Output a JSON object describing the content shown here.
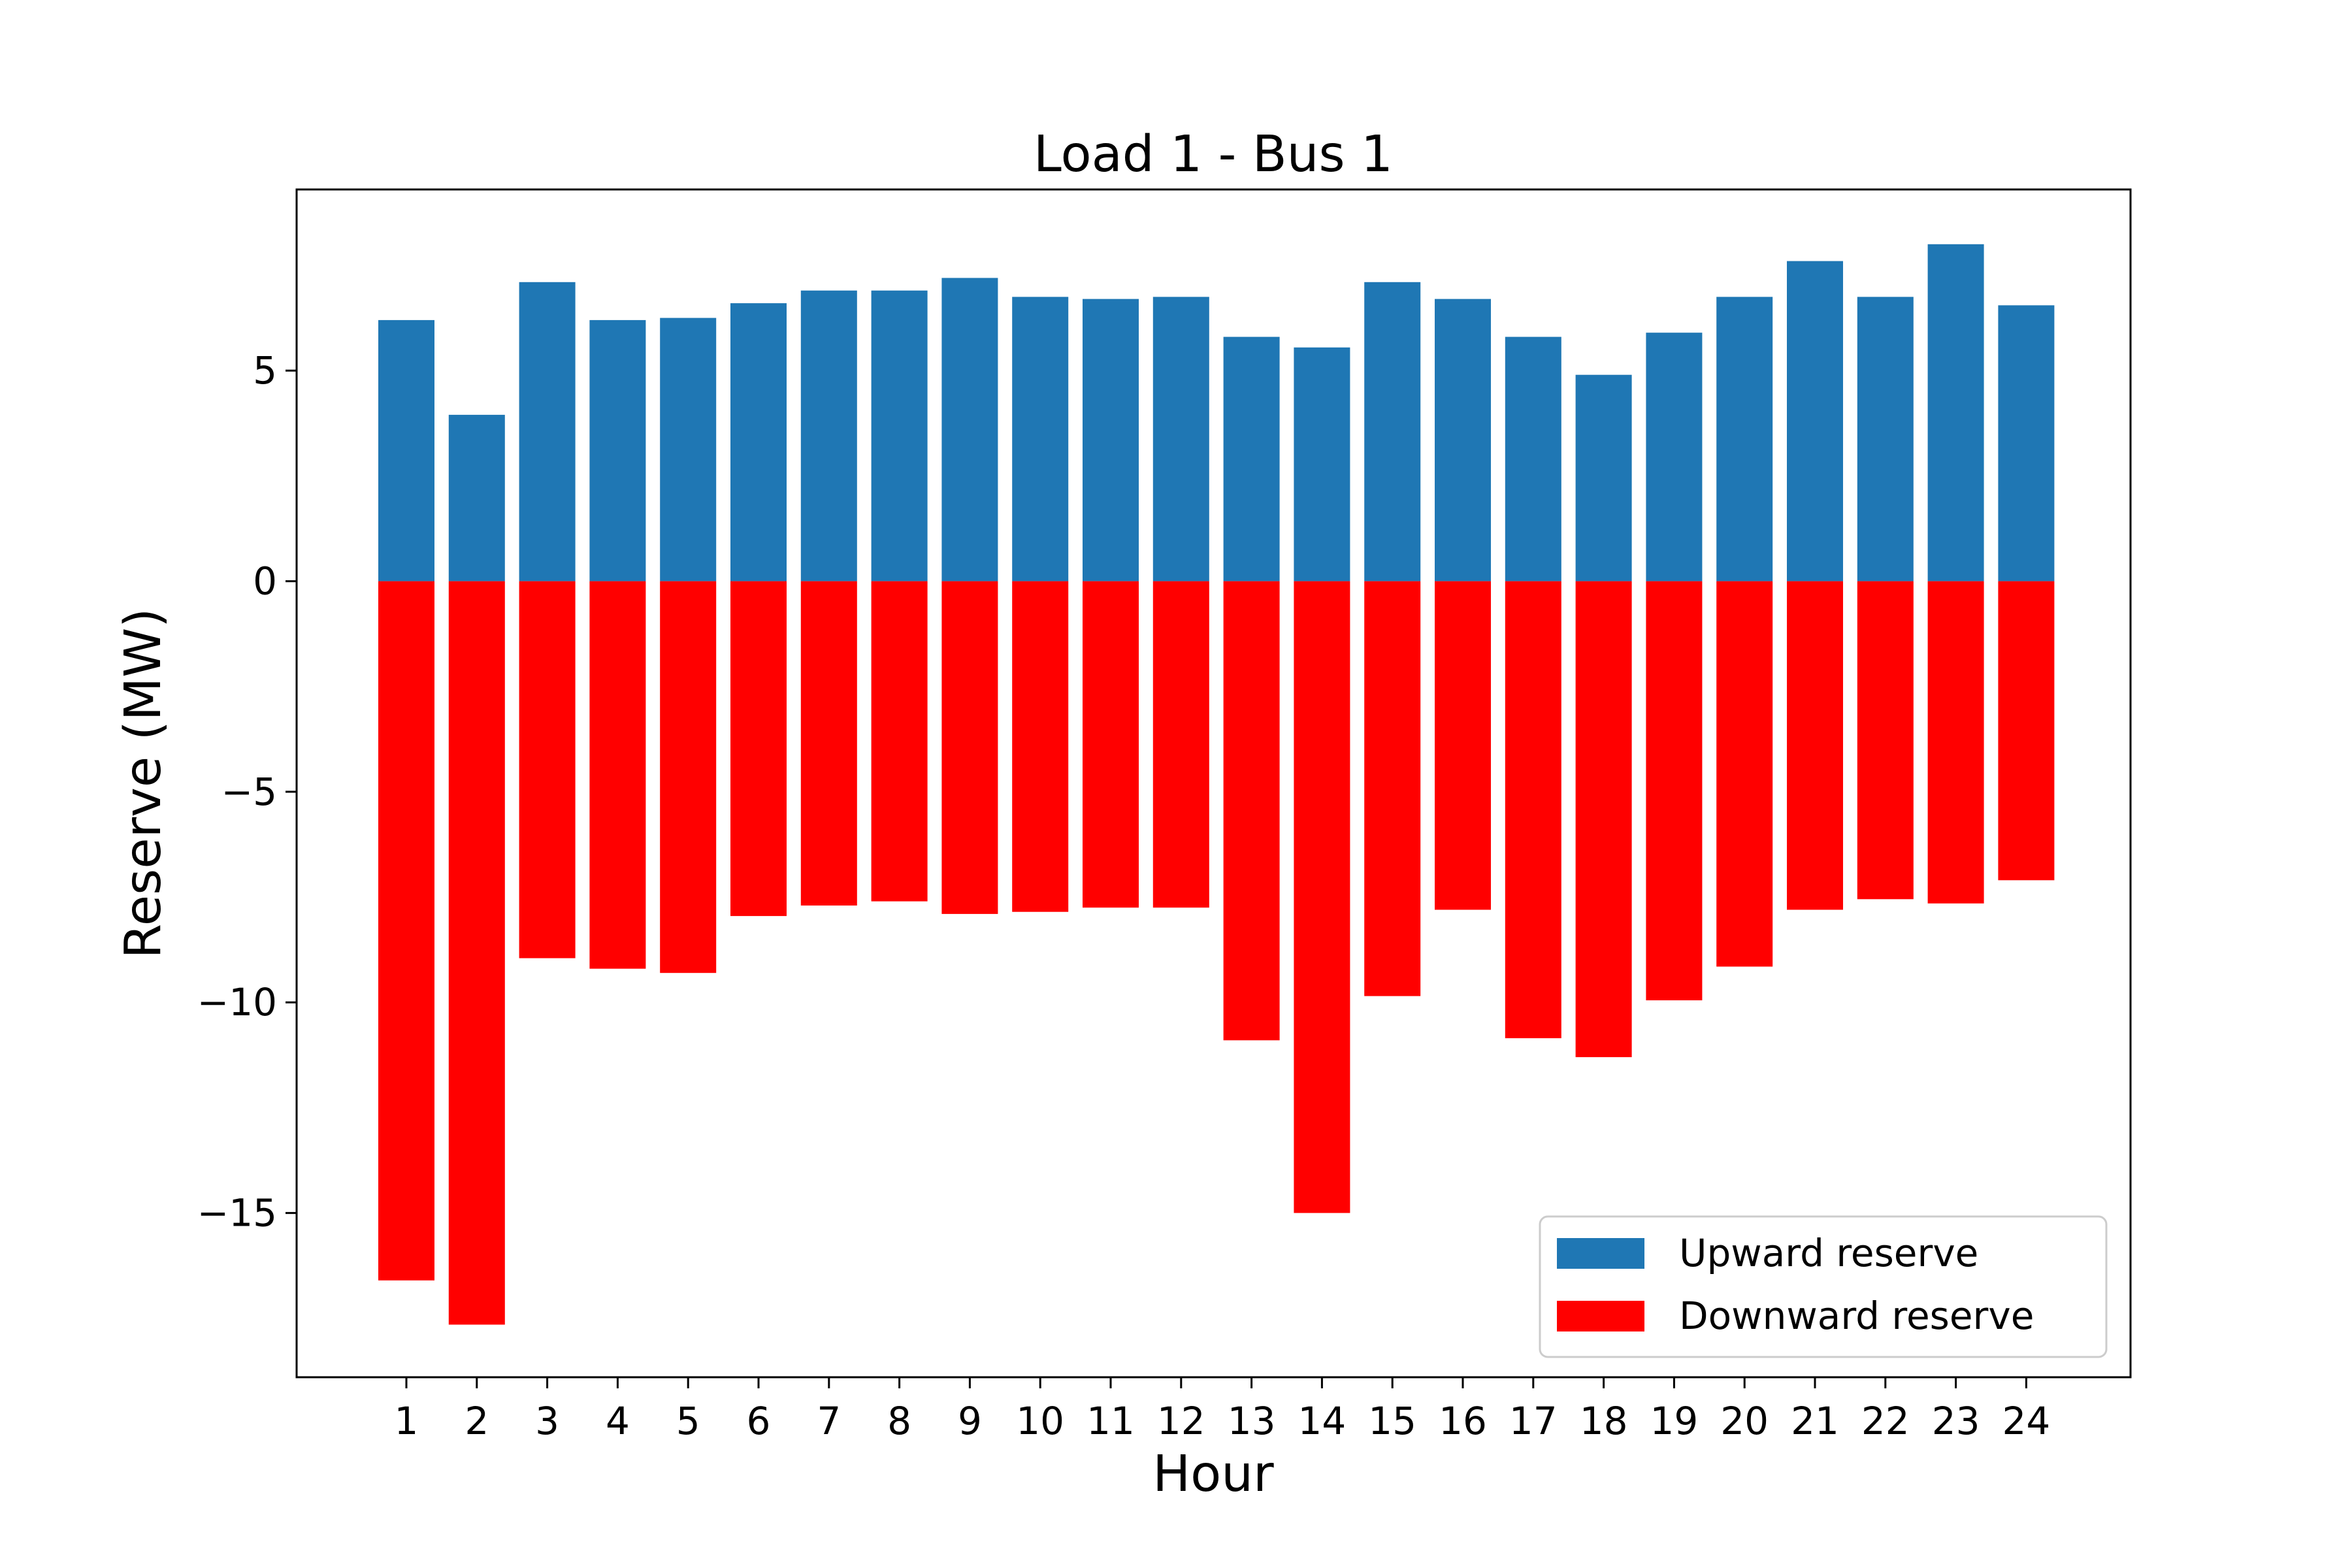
{
  "chart_data": {
    "type": "bar",
    "title": "Load 1 - Bus 1",
    "xlabel": "Hour",
    "ylabel": "Reserve (MW)",
    "categories": [
      "1",
      "2",
      "3",
      "4",
      "5",
      "6",
      "7",
      "8",
      "9",
      "10",
      "11",
      "12",
      "13",
      "14",
      "15",
      "16",
      "17",
      "18",
      "19",
      "20",
      "21",
      "22",
      "23",
      "24"
    ],
    "series": [
      {
        "name": "Upward reserve",
        "color": "#1f77b4",
        "values": [
          6.2,
          3.95,
          7.1,
          6.2,
          6.25,
          6.6,
          6.9,
          6.9,
          7.2,
          6.75,
          6.7,
          6.75,
          5.8,
          5.55,
          7.1,
          6.7,
          5.8,
          4.9,
          5.9,
          6.75,
          7.6,
          6.75,
          8.0,
          6.55
        ]
      },
      {
        "name": "Downward reserve",
        "color": "#ff0000",
        "values": [
          -16.6,
          -17.65,
          -8.95,
          -9.2,
          -9.3,
          -7.95,
          -7.7,
          -7.6,
          -7.9,
          -7.85,
          -7.75,
          -7.75,
          -10.9,
          -15.0,
          -9.85,
          -7.8,
          -10.85,
          -11.3,
          -9.95,
          -9.15,
          -7.8,
          -7.55,
          -7.65,
          -7.1
        ]
      }
    ],
    "ylim": [
      -18.9,
      9.3
    ],
    "yticks": [
      {
        "value": 5,
        "label": "5"
      },
      {
        "value": 0,
        "label": "0"
      },
      {
        "value": -5,
        "label": "−5"
      },
      {
        "value": -10,
        "label": "−10"
      },
      {
        "value": -15,
        "label": "−15"
      }
    ],
    "legend_position": "lower-right",
    "grid": false
  }
}
